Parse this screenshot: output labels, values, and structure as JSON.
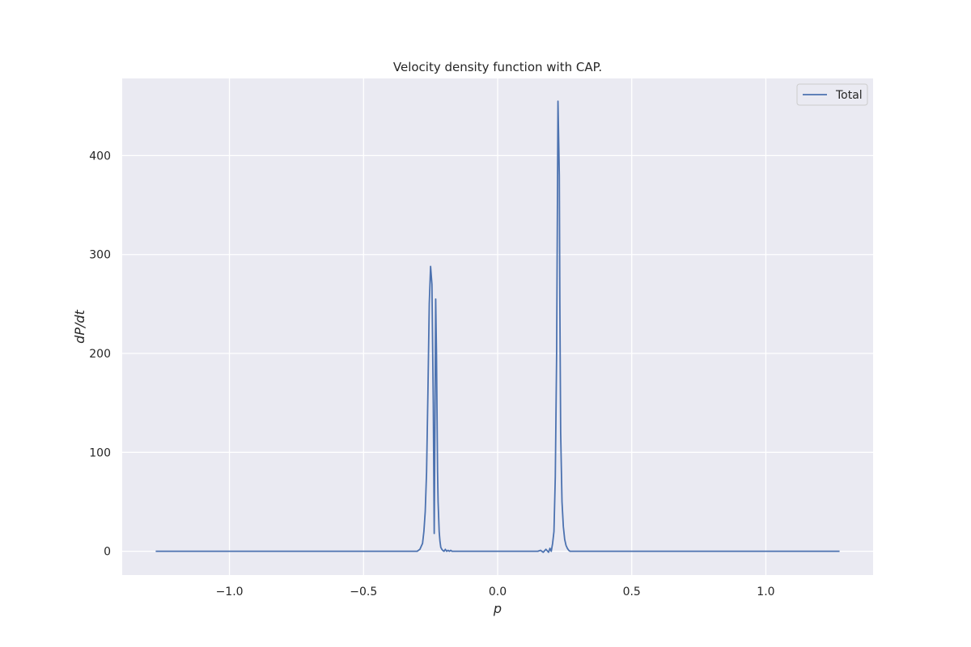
{
  "chart_data": {
    "type": "line",
    "title": "Velocity density function with CAP.",
    "xlabel": "p",
    "ylabel": "dP/dt",
    "xlim": [
      -1.4,
      1.4
    ],
    "ylim": [
      -24,
      478
    ],
    "xticks": [
      -1.0,
      -0.5,
      0.0,
      0.5,
      1.0
    ],
    "xtick_labels": [
      "−1.0",
      "−0.5",
      "0.0",
      "0.5",
      "1.0"
    ],
    "yticks": [
      0,
      100,
      200,
      300,
      400
    ],
    "ytick_labels": [
      "0",
      "100",
      "200",
      "300",
      "400"
    ],
    "grid": true,
    "legend_position": "top-right",
    "background": "#eaeaf2",
    "grid_color": "#ffffff",
    "series": [
      {
        "name": "Total",
        "color": "#4c72b0",
        "x": [
          -1.275,
          -0.35,
          -0.3,
          -0.29,
          -0.28,
          -0.275,
          -0.27,
          -0.265,
          -0.26,
          -0.255,
          -0.25,
          -0.245,
          -0.24,
          -0.2365,
          -0.234,
          -0.231,
          -0.228,
          -0.226,
          -0.224,
          -0.222,
          -0.218,
          -0.215,
          -0.212,
          -0.208,
          -0.205,
          -0.2,
          -0.195,
          -0.19,
          -0.185,
          -0.18,
          -0.175,
          -0.17,
          -0.16,
          0.15,
          0.16,
          0.17,
          0.18,
          0.19,
          0.195,
          0.2,
          0.205,
          0.21,
          0.215,
          0.22,
          0.225,
          0.23,
          0.232,
          0.235,
          0.24,
          0.245,
          0.25,
          0.255,
          0.26,
          0.265,
          0.27,
          0.275,
          0.28,
          0.29,
          0.3,
          0.35,
          1.275
        ],
        "y": [
          0,
          0,
          0,
          2,
          8,
          20,
          40,
          80,
          160,
          250,
          288,
          270,
          150,
          18,
          120,
          255,
          200,
          140,
          80,
          50,
          20,
          10,
          4,
          2,
          1,
          0,
          2,
          0,
          1,
          0,
          1,
          0,
          0,
          0,
          1,
          -1,
          2,
          -1,
          3,
          0,
          8,
          20,
          75,
          200,
          455,
          380,
          250,
          120,
          50,
          25,
          12,
          6,
          3,
          1,
          0,
          0,
          0,
          0,
          0,
          0,
          0
        ]
      }
    ]
  }
}
